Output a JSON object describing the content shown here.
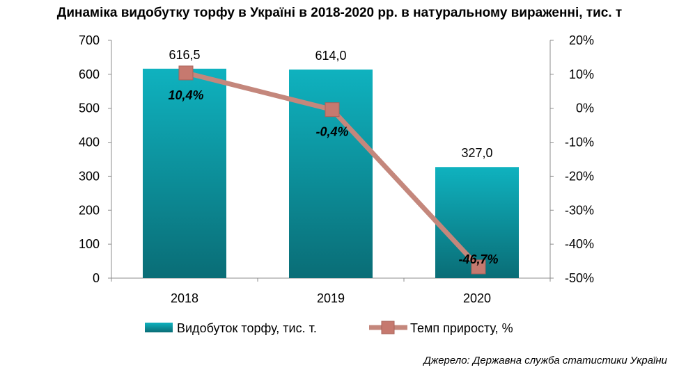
{
  "title": "Динаміка видобутку торфу в Україні в 2018-2020 рр. в натуральному вираженні, тис. т",
  "source": "Джерело: Державна служба статистики України",
  "chart_data": {
    "type": "bar",
    "categories": [
      "2018",
      "2019",
      "2020"
    ],
    "series": [
      {
        "name": "Видобуток торфу, тис. т.",
        "type": "bar",
        "axis": "left",
        "values": [
          616.5,
          614.0,
          327.0
        ],
        "labels": [
          "616,5",
          "614,0",
          "327,0"
        ],
        "color": "#13a2ad"
      },
      {
        "name": "Темп приросту, %",
        "type": "line",
        "axis": "right",
        "values": [
          10.4,
          -0.4,
          -46.7
        ],
        "labels": [
          "10,4%",
          "-0,4%",
          "-46,7%"
        ],
        "color": "#c4877c"
      }
    ],
    "y_left": {
      "ylim": [
        0,
        700
      ],
      "ticks": [
        0,
        100,
        200,
        300,
        400,
        500,
        600,
        700
      ],
      "tick_labels": [
        "0",
        "100",
        "200",
        "300",
        "400",
        "500",
        "600",
        "700"
      ]
    },
    "y_right": {
      "ylim": [
        -50,
        20
      ],
      "ticks": [
        -50,
        -40,
        -30,
        -20,
        -10,
        0,
        10,
        20
      ],
      "tick_labels": [
        "-50%",
        "-40%",
        "-30%",
        "-20%",
        "-10%",
        "0%",
        "10%",
        "20%"
      ]
    },
    "grid": false,
    "legend": "bottom"
  }
}
